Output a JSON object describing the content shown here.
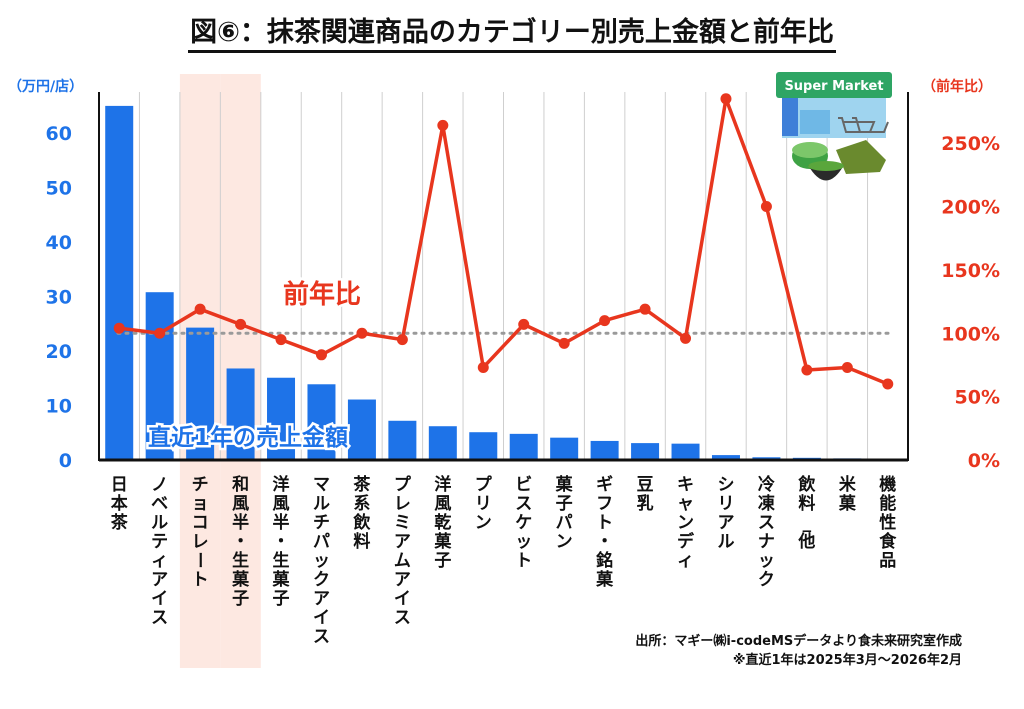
{
  "title": "図⑥：抹茶関連商品のカテゴリー別売上金額と前年比",
  "left_unit": "（万円/店）",
  "right_unit": "（前年比）",
  "source_line1": "出所：マギー㈱i-codeMSデータより食未来研究室作成",
  "source_line2": "※直近1年は2025年3月～2026年2月",
  "supermarket_sign": "Super Market",
  "colors": {
    "bar": "#1e73e8",
    "line": "#e8361e",
    "highlight": "#fde8e1",
    "left_axis_text": "#1e73e8",
    "right_axis_text": "#e8361e"
  },
  "chart_data": {
    "type": "bar+line",
    "categories": [
      "日本茶",
      "ノベルティアイス",
      "チョコレート",
      "和風半・生菓子",
      "洋風半・生菓子",
      "マルチパックアイス",
      "茶系飲料",
      "プレミアムアイス",
      "洋風乾菓子",
      "プリン",
      "ビスケット",
      "菓子パン",
      "ギフト・銘菓",
      "豆乳",
      "キャンディ",
      "シリアル",
      "冷凍スナック",
      "飲料_他",
      "米菓",
      "機能性食品"
    ],
    "highlighted_categories": [
      "チョコレート",
      "和風半・生菓子"
    ],
    "series": [
      {
        "name": "直近1年の売上金額",
        "axis": "left",
        "type": "bar",
        "values": [
          65.0,
          30.8,
          24.3,
          16.8,
          15.1,
          13.9,
          11.1,
          7.2,
          6.2,
          5.1,
          4.8,
          4.1,
          3.5,
          3.1,
          3.0,
          0.9,
          0.5,
          0.4,
          0.3,
          0.2
        ]
      },
      {
        "name": "前年比",
        "axis": "right",
        "type": "line",
        "values": [
          104,
          100,
          119,
          107,
          95,
          83,
          100,
          95,
          264,
          73,
          107,
          92,
          110,
          119,
          96,
          285,
          200,
          71,
          73,
          60
        ]
      }
    ],
    "reference_line": {
      "axis": "right",
      "value": 100,
      "style": "dotted"
    },
    "left_axis": {
      "label": "（万円/店）",
      "range": [
        0,
        67
      ],
      "ticks": [
        0,
        10,
        20,
        30,
        40,
        50,
        60
      ]
    },
    "right_axis": {
      "label": "（前年比）",
      "range": [
        0,
        288
      ],
      "ticks": [
        0,
        50,
        100,
        150,
        200,
        250
      ],
      "tick_labels": [
        "0%",
        "50%",
        "100%",
        "150%",
        "200%",
        "250%"
      ]
    },
    "annotations": [
      "前年比",
      "直近1年の売上金額"
    ],
    "grid": true,
    "legend": "none"
  }
}
